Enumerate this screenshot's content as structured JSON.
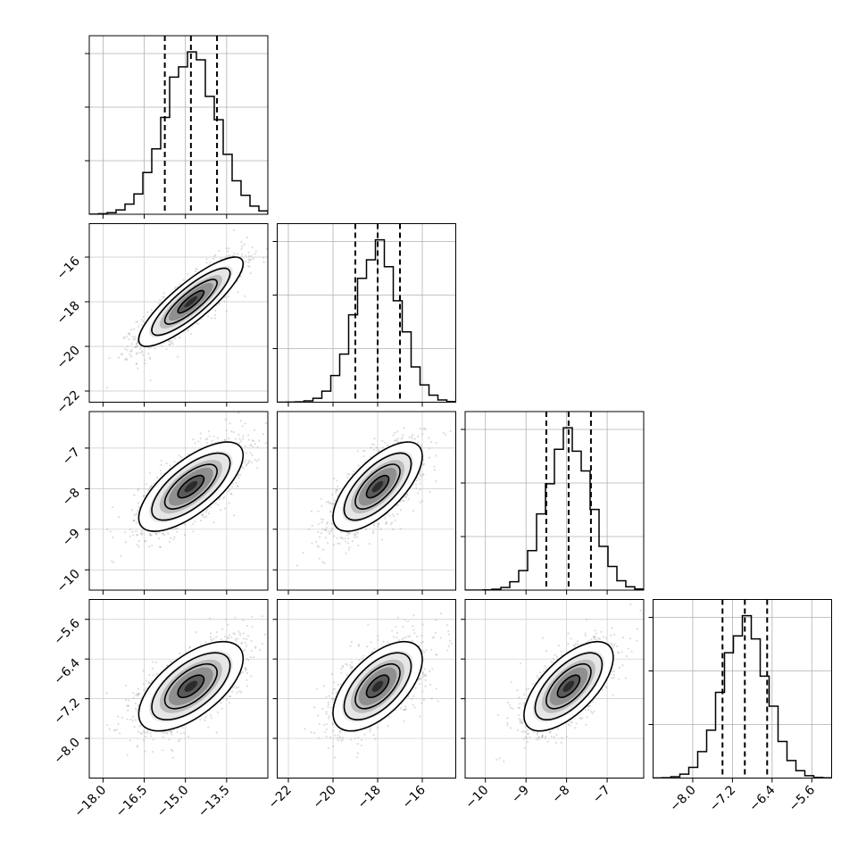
{
  "chart_data": {
    "type": "corner",
    "n_params": 4,
    "means": [
      -14.8,
      -18.0,
      -7.95,
      -6.95
    ],
    "sigmas": [
      0.95,
      1.0,
      0.55,
      0.45
    ],
    "correlations": [
      [
        1.0,
        0.85,
        0.7,
        0.62
      ],
      [
        0.85,
        1.0,
        0.68,
        0.6
      ],
      [
        0.7,
        0.68,
        1.0,
        0.65
      ],
      [
        0.62,
        0.6,
        0.65,
        1.0
      ]
    ],
    "ranges": [
      [
        -18.5,
        -12.0
      ],
      [
        -22.5,
        -14.5
      ],
      [
        -10.5,
        -6.1
      ],
      [
        -8.8,
        -5.2
      ]
    ],
    "quantile_lines": [
      [
        -15.75,
        -14.8,
        -13.85
      ],
      [
        -19.0,
        -18.0,
        -17.0
      ],
      [
        -8.5,
        -7.95,
        -7.4
      ],
      [
        -7.4,
        -6.95,
        -6.5
      ]
    ],
    "ticks": [
      [
        "−18.0",
        "−16.5",
        "−15.0",
        "−13.5"
      ],
      [
        "−22",
        "−20",
        "−18",
        "−16"
      ],
      [
        "−10",
        "−9",
        "−8",
        "−7"
      ],
      [
        "−8.0",
        "−7.2",
        "−6.4",
        "−5.6"
      ]
    ],
    "tick_values": [
      [
        -18.0,
        -16.5,
        -15.0,
        -13.5
      ],
      [
        -22,
        -20,
        -18,
        -16
      ],
      [
        -10,
        -9,
        -8,
        -7
      ],
      [
        -8.0,
        -7.2,
        -6.4,
        -5.6
      ]
    ],
    "histogram_bins": 20,
    "contour_levels_sigma": [
      0.5,
      1.0,
      1.5,
      2.0
    ],
    "contour_color": "#000000",
    "point_color": "#9e9e9e",
    "grid": true,
    "dashed_lines_on_diagonal": true
  }
}
